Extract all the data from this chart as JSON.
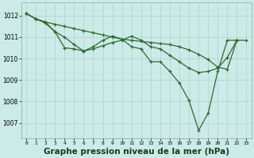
{
  "background_color": "#cceae7",
  "plot_bg_color": "#cceae7",
  "line_color": "#2d6a2d",
  "marker_color": "#2d6a2d",
  "grid_color": "#aad4d0",
  "xlabel": "Graphe pression niveau de la mer (hPa)",
  "xlabel_fontsize": 7.5,
  "ylabel_ticks": [
    1007,
    1008,
    1009,
    1010,
    1011,
    1012
  ],
  "xticks": [
    0,
    1,
    2,
    3,
    4,
    5,
    6,
    7,
    8,
    9,
    10,
    11,
    12,
    13,
    14,
    15,
    16,
    17,
    18,
    19,
    20,
    21,
    22,
    23
  ],
  "xlim": [
    -0.5,
    23.5
  ],
  "ylim": [
    1006.3,
    1012.6
  ],
  "series1_x": [
    0,
    1,
    2,
    3,
    4,
    5,
    6,
    7,
    8,
    9,
    10,
    11,
    12,
    13,
    14,
    15,
    16,
    17,
    18,
    19,
    20,
    21,
    22,
    23
  ],
  "series1_y": [
    1012.1,
    1011.85,
    1011.7,
    1011.6,
    1011.5,
    1011.4,
    1011.3,
    1011.2,
    1011.1,
    1011.0,
    1010.9,
    1010.85,
    1010.8,
    1010.75,
    1010.7,
    1010.65,
    1010.55,
    1010.4,
    1010.2,
    1009.95,
    1009.6,
    1009.5,
    1010.85,
    1010.85
  ],
  "series2_x": [
    0,
    1,
    2,
    3,
    4,
    5,
    6,
    7,
    8,
    9,
    10,
    11,
    12,
    13,
    14,
    15,
    16,
    17,
    18,
    19,
    20,
    21,
    22
  ],
  "series2_y": [
    1012.1,
    1011.85,
    1011.65,
    1011.25,
    1011.0,
    1010.65,
    1010.35,
    1010.55,
    1010.85,
    1011.05,
    1010.9,
    1010.55,
    1010.45,
    1009.85,
    1009.85,
    1009.4,
    1008.85,
    1008.05,
    1006.65,
    1007.45,
    1009.4,
    1010.85,
    1010.85
  ],
  "series3_x": [
    0,
    1,
    2,
    3,
    4,
    5,
    6,
    7,
    8,
    9,
    10,
    11,
    12,
    13,
    14,
    15,
    16,
    17,
    18,
    19,
    20,
    21,
    22
  ],
  "series3_y": [
    1012.1,
    1011.85,
    1011.7,
    1011.25,
    1010.5,
    1010.45,
    1010.35,
    1010.45,
    1010.6,
    1010.75,
    1010.85,
    1011.05,
    1010.85,
    1010.55,
    1010.45,
    1010.15,
    1009.85,
    1009.55,
    1009.35,
    1009.4,
    1009.55,
    1010.05,
    1010.85
  ]
}
